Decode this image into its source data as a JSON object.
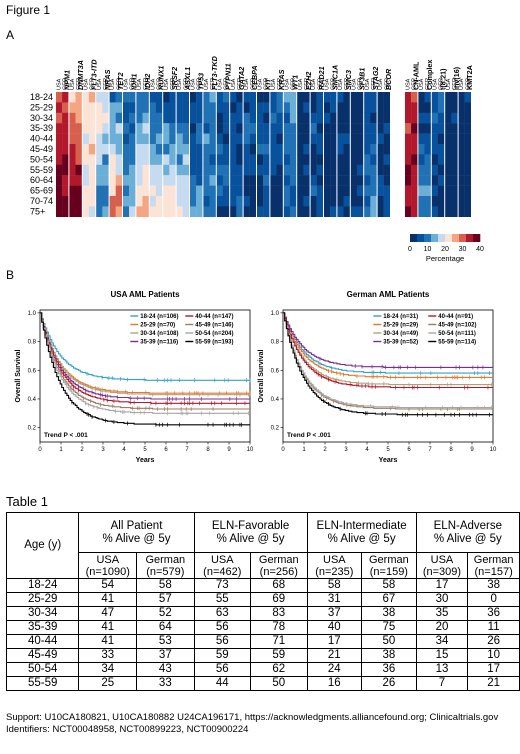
{
  "figure_title": "Figure 1",
  "panel_a_label": "A",
  "panel_b_label": "B",
  "heatmap": {
    "age_groups": [
      "18-24",
      "25-29",
      "30-34",
      "35-39",
      "40-44",
      "45-49",
      "50-54",
      "55-59",
      "60-64",
      "65-69",
      "70-74",
      "75+"
    ],
    "genes": [
      "NPM1",
      "DNMT3A",
      "FLT3-ITD",
      "NRAS",
      "TET2",
      "IDH1",
      "IDH2",
      "RUNX1",
      "SRSF2",
      "ASXL1",
      "TP53",
      "FLT3-TKD",
      "PTPN11",
      "GATA2",
      "CEBPA",
      "KIT",
      "KRAS",
      "WT1",
      "EZH2",
      "RAD21",
      "SMC1A",
      "SMC3",
      "SF3B1",
      "STAG2",
      "BCOR"
    ],
    "cyto": [
      "CN-AML",
      "Complex",
      "t(8;21)",
      "inv(16)",
      "KMT2A"
    ],
    "usa_label": "USA",
    "ger_label": "GER",
    "colorbar_ticks": [
      "0",
      "10",
      "20",
      "30",
      "40"
    ],
    "colorbar_label": "Percentage",
    "colors": [
      "#08306b",
      "#08519c",
      "#2171b5",
      "#6baed6",
      "#c6dbef",
      "#fbe3d6",
      "#f4a582",
      "#d6604d",
      "#b2182b",
      "#67001f"
    ]
  },
  "km_plots": [
    {
      "title": "USA AML Patients",
      "ylabel": "Overall Survival",
      "xlabel": "Years",
      "trend": "Trend P < .001",
      "xticks": [
        "0",
        "1",
        "2",
        "3",
        "4",
        "5",
        "6",
        "7",
        "8",
        "9",
        "10"
      ],
      "yticks": [
        "0.2",
        "0.4",
        "0.6",
        "0.8",
        "1.0"
      ],
      "legend": [
        "18-24 (n=106)",
        "40-44 (n=147)",
        "25-29 (n=70)",
        "45-49 (n=146)",
        "30-34 (n=108)",
        "50-54 (n=204)",
        "35-39 (n=116)",
        "55-59 (n=193)"
      ],
      "series": [
        {
          "name": "18-24",
          "color": "#31a2c9",
          "plateau": 0.53
        },
        {
          "name": "25-29",
          "color": "#e5782a",
          "plateau": 0.44
        },
        {
          "name": "30-34",
          "color": "#b0a17a",
          "plateau": 0.43
        },
        {
          "name": "35-39",
          "color": "#7b2d8e",
          "plateau": 0.4
        },
        {
          "name": "40-44",
          "color": "#b2182b",
          "plateau": 0.37
        },
        {
          "name": "45-49",
          "color": "#9c7a62",
          "plateau": 0.33
        },
        {
          "name": "50-54",
          "color": "#a5a5a5",
          "plateau": 0.3
        },
        {
          "name": "55-59",
          "color": "#000000",
          "plateau": 0.22
        }
      ]
    },
    {
      "title": "German AML Patients",
      "ylabel": "Overall Survival",
      "xlabel": "Years",
      "trend": "Trend P < .001",
      "xticks": [
        "0",
        "1",
        "2",
        "3",
        "4",
        "5",
        "6",
        "7",
        "8",
        "9",
        "10"
      ],
      "yticks": [
        "0.2",
        "0.4",
        "0.6",
        "0.8",
        "1.0"
      ],
      "legend": [
        "18-24 (n=31)",
        "40-44 (n=91)",
        "25-29 (n=29)",
        "45-49 (n=102)",
        "30-34 (n=49)",
        "50-54 (n=111)",
        "35-39 (n=52)",
        "55-59 (n=114)"
      ],
      "series": [
        {
          "name": "18-24",
          "color": "#31a2c9",
          "plateau": 0.58
        },
        {
          "name": "25-29",
          "color": "#e5782a",
          "plateau": 0.55
        },
        {
          "name": "30-34",
          "color": "#b0a17a",
          "plateau": 0.5
        },
        {
          "name": "35-39",
          "color": "#7b2d8e",
          "plateau": 0.62
        },
        {
          "name": "40-44",
          "color": "#b2182b",
          "plateau": 0.48
        },
        {
          "name": "45-49",
          "color": "#9c7a62",
          "plateau": 0.33
        },
        {
          "name": "50-54",
          "color": "#a5a5a5",
          "plateau": 0.34
        },
        {
          "name": "55-59",
          "color": "#000000",
          "plateau": 0.29
        }
      ]
    }
  ],
  "table": {
    "title": "Table 1",
    "col_age": "Age (y)",
    "groups": [
      {
        "line1": "All Patient",
        "line2": "% Alive @ 5y"
      },
      {
        "line1": "ELN-Favorable",
        "line2": "% Alive @ 5y"
      },
      {
        "line1": "ELN-Intermediate",
        "line2": "% Alive @ 5y"
      },
      {
        "line1": "ELN-Adverse",
        "line2": "% Alive @ 5y"
      }
    ],
    "subheaders": [
      {
        "a": "USA",
        "b": "(n=1090)"
      },
      {
        "a": "German",
        "b": "(n=579)"
      },
      {
        "a": "USA",
        "b": "(n=462)"
      },
      {
        "a": "German",
        "b": "(n=256)"
      },
      {
        "a": "USA",
        "b": "(n=235)"
      },
      {
        "a": "German",
        "b": "(n=159)"
      },
      {
        "a": "USA",
        "b": "(n=309)"
      },
      {
        "a": "German",
        "b": "(n=157)"
      }
    ],
    "rows": [
      [
        "18-24",
        "54",
        "58",
        "73",
        "68",
        "58",
        "58",
        "17",
        "38"
      ],
      [
        "25-29",
        "41",
        "57",
        "55",
        "69",
        "31",
        "67",
        "30",
        "0"
      ],
      [
        "30-34",
        "47",
        "52",
        "63",
        "83",
        "37",
        "38",
        "35",
        "36"
      ],
      [
        "35-39",
        "41",
        "64",
        "56",
        "78",
        "40",
        "75",
        "20",
        "11"
      ],
      [
        "40-44",
        "41",
        "53",
        "56",
        "71",
        "17",
        "50",
        "34",
        "26"
      ],
      [
        "45-49",
        "33",
        "37",
        "59",
        "59",
        "21",
        "38",
        "15",
        "10"
      ],
      [
        "50-54",
        "34",
        "43",
        "56",
        "62",
        "24",
        "36",
        "13",
        "17"
      ],
      [
        "55-59",
        "25",
        "33",
        "44",
        "50",
        "16",
        "26",
        "7",
        "21"
      ]
    ]
  },
  "support_line1": "Support: U10CA180821, U10CA180882 U24CA196171, https://acknowledgments.alliancefound.org; Clinicaltrials.gov",
  "support_line2": "Identifiers: NCT00048958, NCT00899223, NCT00900224"
}
